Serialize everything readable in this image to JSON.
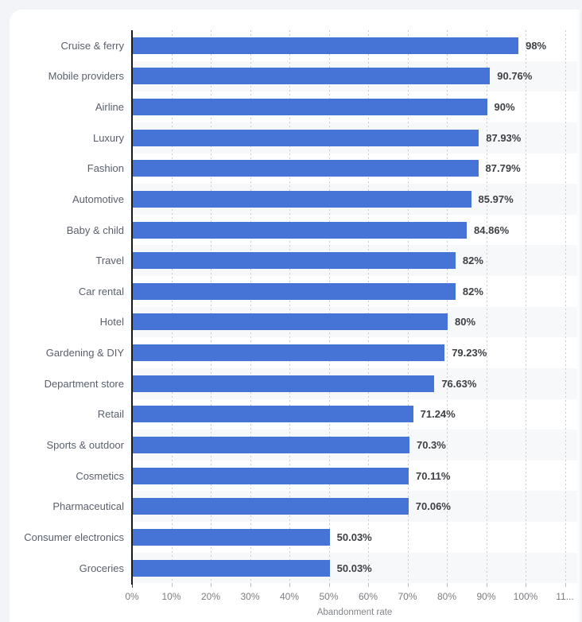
{
  "page": {
    "background_color": "#f2f4f7",
    "card_background_color": "#ffffff"
  },
  "chart_data": {
    "type": "bar",
    "orientation": "horizontal",
    "title": "",
    "xlabel": "Abandonment rate",
    "ylabel": "",
    "xlim": [
      0,
      110
    ],
    "grid": "vertical-dotted",
    "legend_position": "none",
    "categories": [
      "Cruise & ferry",
      "Mobile providers",
      "Airline",
      "Luxury",
      "Fashion",
      "Automotive",
      "Baby & child",
      "Travel",
      "Car rental",
      "Hotel",
      "Gardening & DIY",
      "Department store",
      "Retail",
      "Sports & outdoor",
      "Cosmetics",
      "Pharmaceutical",
      "Consumer electronics",
      "Groceries"
    ],
    "values": [
      98,
      90.76,
      90,
      87.93,
      87.79,
      85.97,
      84.86,
      82,
      82,
      80,
      79.23,
      76.63,
      71.24,
      70.3,
      70.11,
      70.06,
      50.03,
      50.03
    ],
    "value_labels": [
      "98%",
      "90.76%",
      "90%",
      "87.93%",
      "87.79%",
      "85.97%",
      "84.86%",
      "82%",
      "82%",
      "80%",
      "79.23%",
      "76.63%",
      "71.24%",
      "70.3%",
      "70.11%",
      "70.06%",
      "50.03%",
      "50.03%"
    ],
    "x_ticks": [
      {
        "value": 0,
        "label": "0%"
      },
      {
        "value": 10,
        "label": "10%"
      },
      {
        "value": 20,
        "label": "20%"
      },
      {
        "value": 30,
        "label": "30%"
      },
      {
        "value": 40,
        "label": "40%"
      },
      {
        "value": 50,
        "label": "50%"
      },
      {
        "value": 60,
        "label": "60%"
      },
      {
        "value": 70,
        "label": "70%"
      },
      {
        "value": 80,
        "label": "80%"
      },
      {
        "value": 90,
        "label": "90%"
      },
      {
        "value": 100,
        "label": "100%"
      },
      {
        "value": 110,
        "label": "11..."
      }
    ],
    "colors": {
      "bar": "#4573d6",
      "row_band": "#f7f8f9",
      "gridline": "#c9cbcd",
      "axis_line": "#1a1a1e",
      "category_label": "#5a606c",
      "value_label": "#3d4045",
      "tick_label": "#7c7d80",
      "axis_title": "#83868b"
    }
  }
}
